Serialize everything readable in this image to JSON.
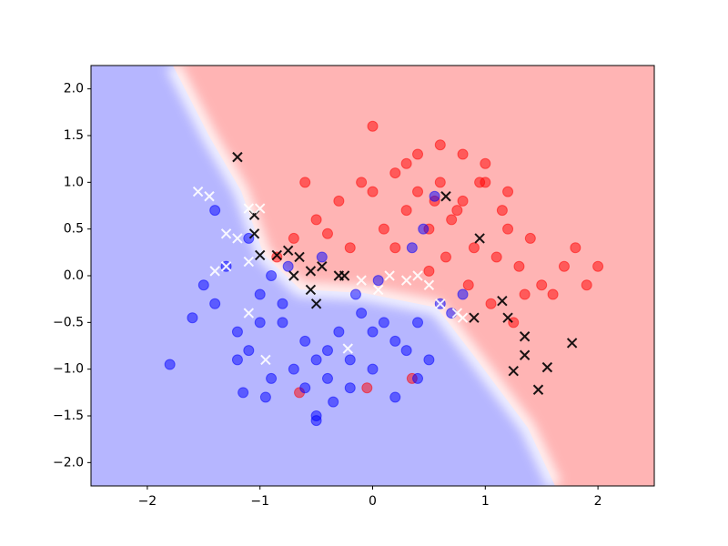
{
  "chart_data": {
    "type": "scatter",
    "xlim": [
      -2.5,
      2.5
    ],
    "ylim": [
      -2.25,
      2.25
    ],
    "xticks": [
      {
        "value": -2,
        "label": "−2"
      },
      {
        "value": -1,
        "label": "−1"
      },
      0,
      1,
      2
    ],
    "yticks": [
      {
        "value": -2.0,
        "label": "−2.0"
      },
      {
        "value": -1.5,
        "label": "−1.5"
      },
      {
        "value": -1.0,
        "label": "−1.0"
      },
      {
        "value": -0.5,
        "label": "−0.5"
      },
      {
        "value": 0.0,
        "label": "0.0"
      },
      0.5,
      {
        "value": 1.0,
        "label": "1.0"
      },
      1.5,
      {
        "value": 2.0,
        "label": "2.0"
      }
    ],
    "grid": false,
    "series": [
      {
        "color": "#ff0000",
        "marker": "o",
        "x": [
          0.0,
          0.2,
          0.4,
          0.6,
          0.8,
          1.0,
          1.2,
          -0.3,
          -0.5,
          -0.7,
          0.5,
          0.7,
          0.9,
          1.1,
          1.3,
          1.5,
          1.7,
          1.9,
          2.0,
          0.3,
          0.1,
          -0.1,
          0.6,
          0.8,
          1.0,
          1.2,
          1.4,
          0.4,
          0.2,
          -0.2,
          0.55,
          0.75,
          0.95,
          1.15,
          1.35,
          1.6,
          1.8,
          -0.4,
          -0.6,
          0.0,
          0.3,
          0.65,
          0.85,
          -0.85,
          0.5,
          -0.05,
          -0.65,
          0.35,
          1.05,
          1.25
        ],
        "values": [
          0.9,
          1.1,
          1.3,
          1.0,
          0.8,
          1.2,
          0.9,
          0.8,
          0.6,
          0.4,
          0.5,
          0.6,
          0.3,
          0.2,
          0.1,
          -0.1,
          0.1,
          -0.1,
          0.1,
          0.7,
          0.5,
          1.0,
          1.4,
          1.3,
          1.0,
          0.5,
          0.4,
          0.9,
          0.3,
          0.3,
          0.8,
          0.7,
          1.0,
          0.7,
          -0.2,
          -0.2,
          0.3,
          0.45,
          1.0,
          1.6,
          1.2,
          0.2,
          -0.1,
          0.2,
          0.05,
          -1.2,
          -1.25,
          -1.1,
          -0.3,
          -0.5
        ]
      },
      {
        "color": "#0000ff",
        "marker": "o",
        "x": [
          -1.8,
          -1.6,
          -1.4,
          -1.2,
          -1.0,
          -0.8,
          -0.6,
          -0.4,
          -0.2,
          0.0,
          0.2,
          0.4,
          0.6,
          0.8,
          -1.5,
          -1.3,
          -1.1,
          -0.9,
          -0.7,
          -0.5,
          -0.3,
          -0.1,
          0.1,
          0.3,
          0.5,
          0.7,
          -1.2,
          -1.0,
          -0.8,
          -0.6,
          -0.4,
          -0.2,
          0.0,
          0.2,
          0.4,
          -1.4,
          -1.1,
          -0.9,
          -0.5,
          -0.5,
          -0.45,
          -0.15,
          0.55,
          0.45,
          -0.95,
          -1.15,
          0.35,
          -0.75,
          -0.35,
          0.05
        ],
        "values": [
          -0.95,
          -0.45,
          -0.3,
          -0.6,
          -0.2,
          -0.5,
          -0.7,
          -0.8,
          -0.9,
          -1.0,
          -0.7,
          -0.5,
          -0.3,
          -0.2,
          -0.1,
          0.1,
          -0.8,
          -1.1,
          -1.0,
          -0.9,
          -0.6,
          -0.4,
          -0.5,
          -0.8,
          -0.9,
          -0.4,
          -0.9,
          -0.5,
          -0.3,
          -1.2,
          -1.1,
          -1.2,
          -0.6,
          -1.3,
          -1.1,
          0.7,
          0.4,
          0.0,
          -1.5,
          -1.55,
          0.2,
          -0.2,
          0.85,
          0.5,
          -1.3,
          -1.25,
          0.3,
          0.1,
          -1.35,
          -0.05
        ]
      },
      {
        "color": "#000000",
        "marker": "x",
        "x": [
          -1.2,
          -1.05,
          -1.05,
          -1.0,
          -0.85,
          -0.75,
          -0.7,
          -0.65,
          -0.55,
          -0.55,
          -0.5,
          -0.3,
          -0.25,
          0.65,
          0.95,
          1.15,
          1.2,
          1.35,
          1.35,
          1.25,
          1.55,
          1.47,
          1.77,
          0.9,
          -0.45
        ],
        "values": [
          1.27,
          0.65,
          0.45,
          0.22,
          0.22,
          0.27,
          0.0,
          0.2,
          0.05,
          -0.15,
          -0.3,
          0.0,
          0.0,
          0.85,
          0.4,
          -0.27,
          -0.45,
          -0.65,
          -0.85,
          -1.02,
          -0.98,
          -1.22,
          -0.72,
          -0.45,
          0.1
        ]
      },
      {
        "color": "#ffffff",
        "marker": "x",
        "x": [
          -1.55,
          -1.45,
          -1.1,
          -1.0,
          -1.3,
          -1.2,
          -1.4,
          -1.3,
          -1.1,
          -1.1,
          -0.95,
          -0.22,
          0.05,
          0.15,
          0.3,
          0.4,
          0.5,
          0.6,
          0.75,
          0.8,
          -0.1
        ],
        "values": [
          0.9,
          0.85,
          0.72,
          0.72,
          0.45,
          0.4,
          0.05,
          0.1,
          0.15,
          -0.4,
          -0.9,
          -0.78,
          -0.15,
          0.0,
          -0.05,
          0.0,
          -0.1,
          -0.3,
          -0.4,
          -0.45,
          -0.05
        ]
      }
    ]
  }
}
